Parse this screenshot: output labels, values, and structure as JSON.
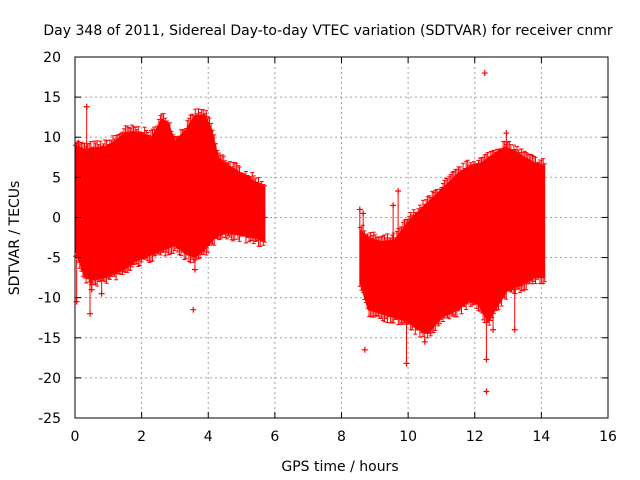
{
  "chart_data": {
    "type": "scatter",
    "title": "Day 348 of 2011, Sidereal Day-to-day VTEC variation (SDTVAR) for receiver cnmr",
    "xlabel": "GPS time / hours",
    "ylabel": "SDTVAR / TECUs",
    "xlim": [
      0,
      16
    ],
    "ylim": [
      -25,
      20
    ],
    "xticks": [
      0,
      2,
      4,
      6,
      8,
      10,
      12,
      14,
      16
    ],
    "yticks": [
      -25,
      -20,
      -15,
      -10,
      -5,
      0,
      5,
      10,
      15,
      20
    ],
    "grid": true,
    "series_color": "#ff0000",
    "segments": [
      {
        "name": "segment-1",
        "x_start": 0.0,
        "x_end": 5.7,
        "upper": [
          [
            0.0,
            9.0
          ],
          [
            0.3,
            8.5
          ],
          [
            0.6,
            8.7
          ],
          [
            0.9,
            8.8
          ],
          [
            1.2,
            9.5
          ],
          [
            1.5,
            10.6
          ],
          [
            1.8,
            10.7
          ],
          [
            2.0,
            10.5
          ],
          [
            2.3,
            10.0
          ],
          [
            2.6,
            12.3
          ],
          [
            2.8,
            11.8
          ],
          [
            3.0,
            9.5
          ],
          [
            3.3,
            10.8
          ],
          [
            3.6,
            12.7
          ],
          [
            3.9,
            12.8
          ],
          [
            4.1,
            11.0
          ],
          [
            4.3,
            7.5
          ],
          [
            4.6,
            6.5
          ],
          [
            5.0,
            5.5
          ],
          [
            5.4,
            4.5
          ],
          [
            5.7,
            3.8
          ]
        ],
        "lower": [
          [
            0.0,
            -4.0
          ],
          [
            0.3,
            -7.5
          ],
          [
            0.6,
            -7.8
          ],
          [
            0.9,
            -7.5
          ],
          [
            1.2,
            -7.0
          ],
          [
            1.5,
            -6.5
          ],
          [
            1.8,
            -5.5
          ],
          [
            2.1,
            -5.0
          ],
          [
            2.4,
            -4.5
          ],
          [
            2.7,
            -4.0
          ],
          [
            3.0,
            -3.5
          ],
          [
            3.3,
            -4.5
          ],
          [
            3.6,
            -5.0
          ],
          [
            3.9,
            -4.0
          ],
          [
            4.2,
            -2.5
          ],
          [
            4.5,
            -2.0
          ],
          [
            5.0,
            -2.2
          ],
          [
            5.5,
            -2.7
          ],
          [
            5.7,
            -3.0
          ]
        ],
        "outliers": [
          [
            0.05,
            -10.5
          ],
          [
            0.1,
            9.3
          ],
          [
            0.35,
            13.8
          ],
          [
            0.35,
            7.0
          ],
          [
            0.45,
            -12.0
          ],
          [
            0.5,
            -9.0
          ],
          [
            0.8,
            -9.5
          ],
          [
            3.55,
            -11.5
          ],
          [
            3.6,
            -6.5
          ],
          [
            5.7,
            0.0
          ]
        ]
      },
      {
        "name": "segment-2",
        "x_start": 8.55,
        "x_end": 14.1,
        "upper": [
          [
            8.55,
            -1.5
          ],
          [
            8.8,
            -2.5
          ],
          [
            9.2,
            -3.0
          ],
          [
            9.6,
            -2.8
          ],
          [
            10.0,
            -0.5
          ],
          [
            10.5,
            1.5
          ],
          [
            11.0,
            3.5
          ],
          [
            11.5,
            5.5
          ],
          [
            11.8,
            6.3
          ],
          [
            12.2,
            6.8
          ],
          [
            12.6,
            8.0
          ],
          [
            12.9,
            8.8
          ],
          [
            13.2,
            8.3
          ],
          [
            13.5,
            7.5
          ],
          [
            13.8,
            6.8
          ],
          [
            14.1,
            6.5
          ]
        ],
        "lower": [
          [
            8.55,
            -8.0
          ],
          [
            8.8,
            -11.5
          ],
          [
            9.2,
            -12.0
          ],
          [
            9.6,
            -12.5
          ],
          [
            10.0,
            -13.0
          ],
          [
            10.3,
            -14.0
          ],
          [
            10.6,
            -14.5
          ],
          [
            11.0,
            -12.5
          ],
          [
            11.5,
            -11.5
          ],
          [
            11.8,
            -10.5
          ],
          [
            12.1,
            -10.8
          ],
          [
            12.4,
            -13.0
          ],
          [
            12.7,
            -11.0
          ],
          [
            13.0,
            -9.0
          ],
          [
            13.4,
            -8.5
          ],
          [
            13.8,
            -7.5
          ],
          [
            14.1,
            -7.5
          ]
        ],
        "outliers": [
          [
            8.55,
            1.0
          ],
          [
            8.65,
            0.5
          ],
          [
            8.7,
            -16.5
          ],
          [
            9.55,
            1.5
          ],
          [
            9.7,
            3.3
          ],
          [
            9.95,
            -18.2
          ],
          [
            10.35,
            0.5
          ],
          [
            10.5,
            -15.5
          ],
          [
            12.3,
            18.0
          ],
          [
            12.35,
            -21.7
          ],
          [
            12.35,
            -17.7
          ],
          [
            12.95,
            10.5
          ],
          [
            13.2,
            -14.0
          ],
          [
            13.1,
            -9.0
          ],
          [
            12.55,
            -14.0
          ]
        ]
      }
    ]
  }
}
